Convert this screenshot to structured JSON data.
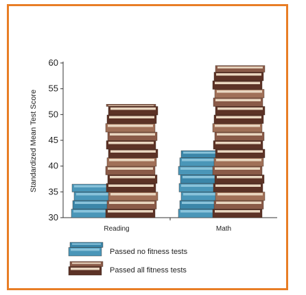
{
  "chart_data": {
    "type": "bar",
    "title": "",
    "xlabel": "",
    "ylabel": "Standardized Mean Test Score",
    "ylim": [
      30,
      60
    ],
    "yticks": [
      30,
      35,
      40,
      45,
      50,
      55,
      60
    ],
    "categories": [
      "Reading",
      "Math"
    ],
    "series": [
      {
        "name": "Passed no fitness tests",
        "values": [
          36.5,
          43
        ]
      },
      {
        "name": "Passed all fitness tests",
        "values": [
          52,
          59.5
        ]
      }
    ],
    "legend": "bottom",
    "grid": false,
    "colors": {
      "frame": "#e87d25",
      "no_tests": "#4a96b8",
      "no_tests_light": "#8ac3da",
      "all_tests_dark": "#5c3226",
      "all_tests_mid": "#8a5a48",
      "all_tests_light": "#e8d6c0"
    }
  }
}
